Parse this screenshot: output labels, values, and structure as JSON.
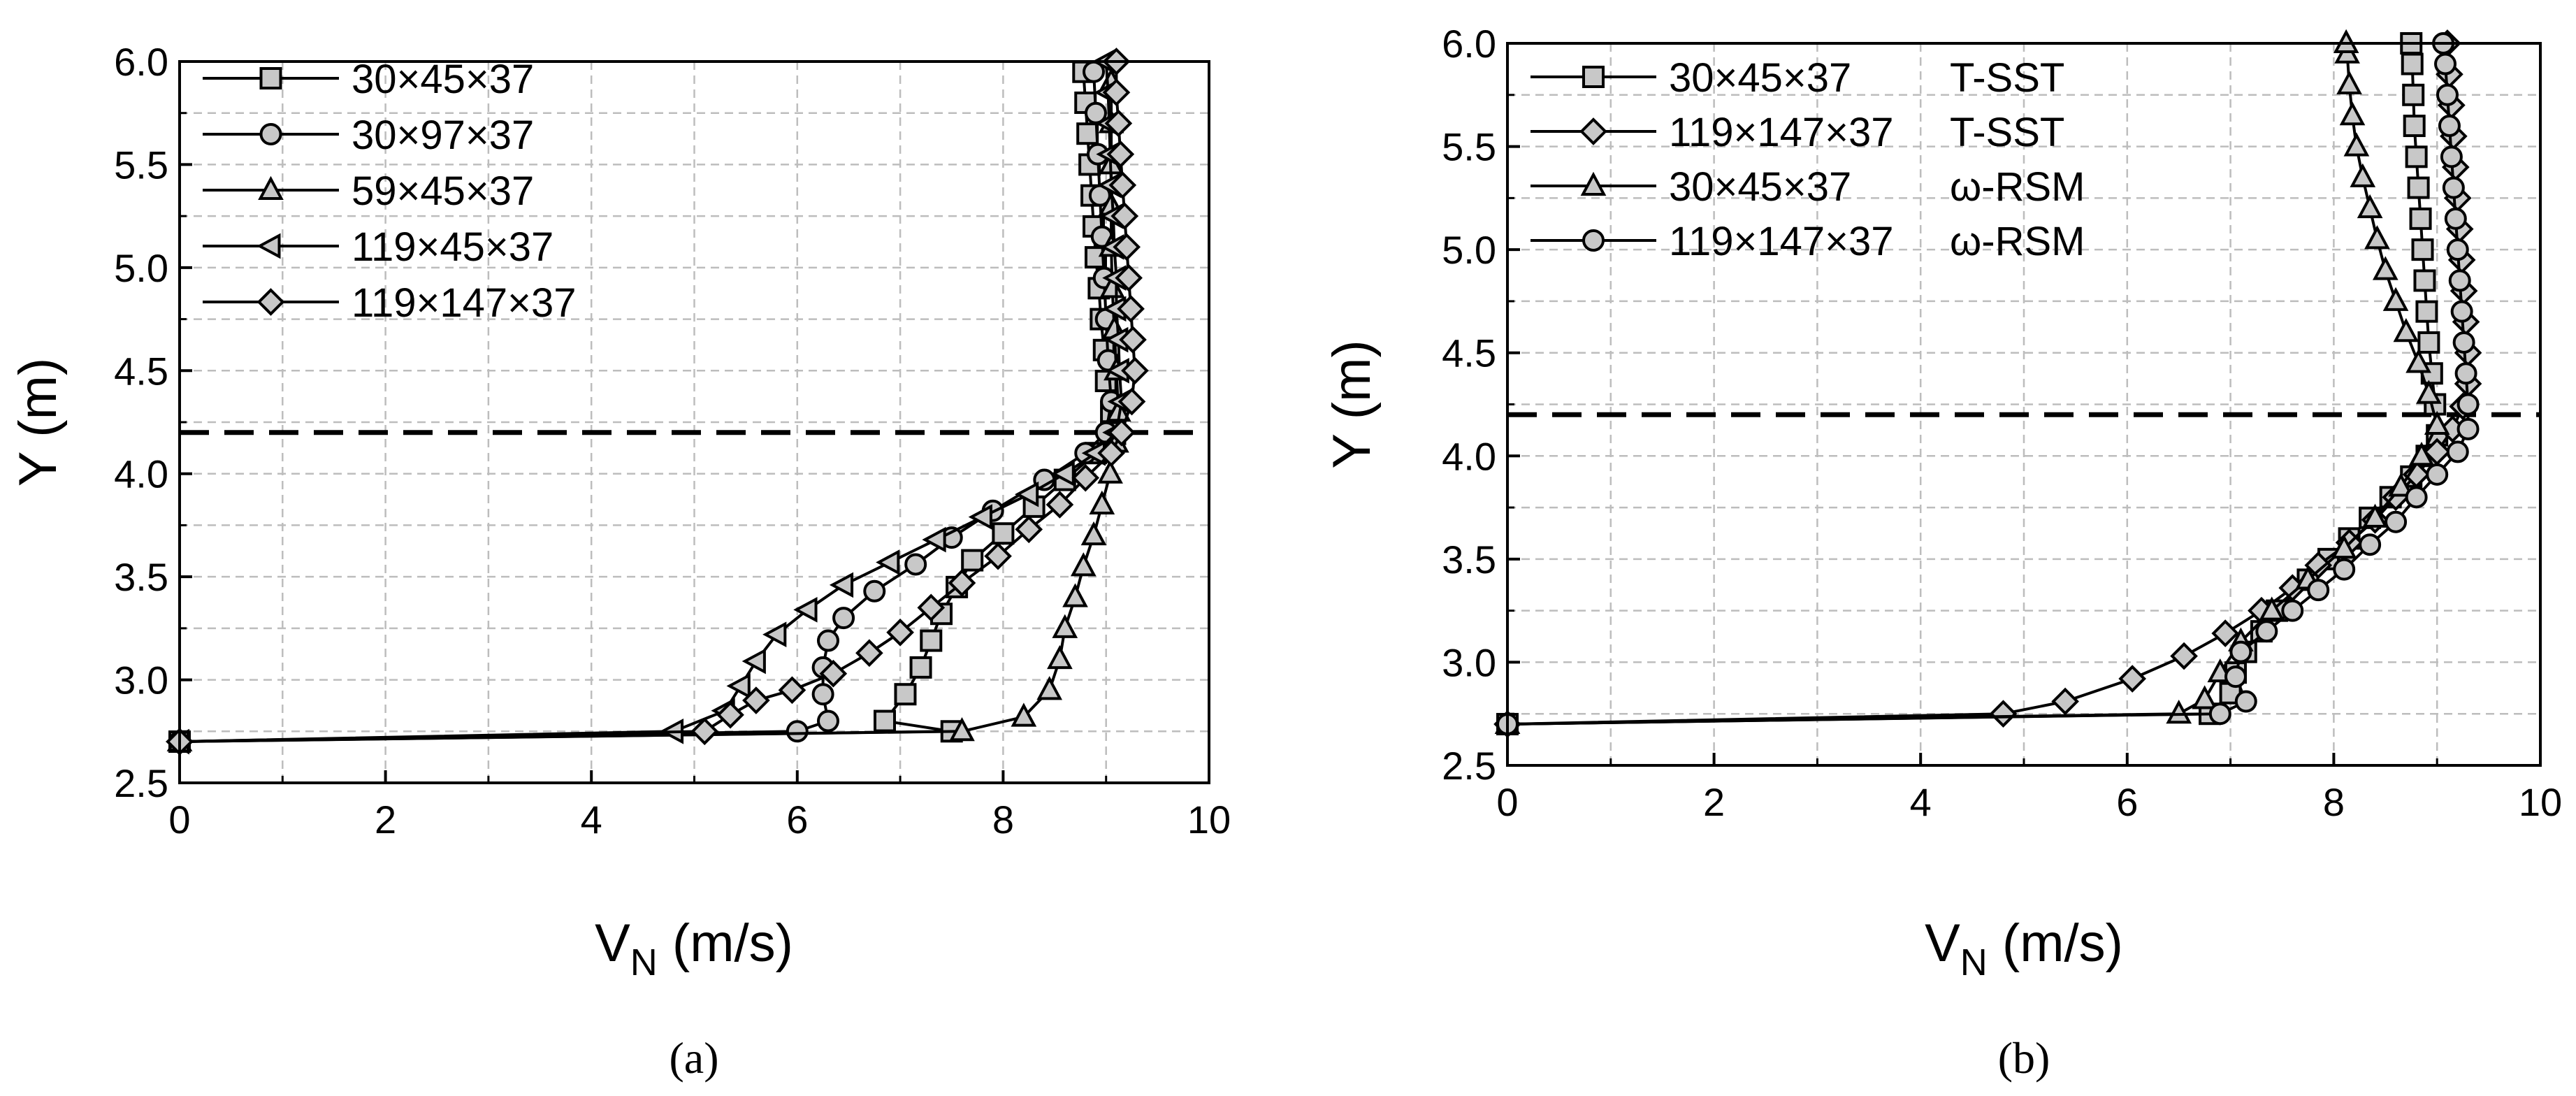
{
  "chart_data": [
    {
      "type": "line",
      "panel_label": "(a)",
      "xlabel_main": "V",
      "xlabel_sub": "N",
      "xlabel_rest": " (m/s)",
      "ylabel": "Y (m)",
      "xlim": [
        0,
        10
      ],
      "ylim": [
        2.5,
        6.0
      ],
      "xticks": [
        "0",
        "2",
        "4",
        "6",
        "8",
        "10"
      ],
      "yticks": [
        "2.5",
        "3.0",
        "3.5",
        "4.0",
        "4.5",
        "5.0",
        "5.5",
        "6.0"
      ],
      "grid": true,
      "legend_position": "top-left",
      "reference_line_y": 4.2,
      "series": [
        {
          "name": "30×45×37",
          "marker": "square",
          "points": [
            [
              0,
              2.7
            ],
            [
              7.5,
              2.75
            ],
            [
              6.85,
              2.8
            ],
            [
              7.05,
              2.93
            ],
            [
              7.2,
              3.06
            ],
            [
              7.3,
              3.19
            ],
            [
              7.4,
              3.32
            ],
            [
              7.55,
              3.45
            ],
            [
              7.7,
              3.58
            ],
            [
              8.0,
              3.71
            ],
            [
              8.3,
              3.84
            ],
            [
              8.6,
              3.97
            ],
            [
              8.9,
              4.1
            ],
            [
              9.05,
              4.2
            ],
            [
              9.05,
              4.3
            ],
            [
              9.0,
              4.45
            ],
            [
              8.98,
              4.6
            ],
            [
              8.95,
              4.75
            ],
            [
              8.93,
              4.9
            ],
            [
              8.9,
              5.05
            ],
            [
              8.88,
              5.2
            ],
            [
              8.86,
              5.35
            ],
            [
              8.84,
              5.5
            ],
            [
              8.82,
              5.65
            ],
            [
              8.8,
              5.8
            ],
            [
              8.78,
              5.95
            ]
          ]
        },
        {
          "name": "30×97×37",
          "marker": "circle",
          "points": [
            [
              0,
              2.7
            ],
            [
              6.0,
              2.75
            ],
            [
              6.3,
              2.8
            ],
            [
              6.25,
              2.93
            ],
            [
              6.25,
              3.06
            ],
            [
              6.3,
              3.19
            ],
            [
              6.45,
              3.3
            ],
            [
              6.75,
              3.43
            ],
            [
              7.15,
              3.56
            ],
            [
              7.5,
              3.69
            ],
            [
              7.9,
              3.82
            ],
            [
              8.4,
              3.97
            ],
            [
              8.8,
              4.1
            ],
            [
              9.0,
              4.2
            ],
            [
              9.05,
              4.35
            ],
            [
              9.02,
              4.55
            ],
            [
              9.0,
              4.75
            ],
            [
              8.98,
              4.95
            ],
            [
              8.96,
              5.15
            ],
            [
              8.94,
              5.35
            ],
            [
              8.92,
              5.55
            ],
            [
              8.9,
              5.75
            ],
            [
              8.88,
              5.95
            ]
          ]
        },
        {
          "name": "59×45×37",
          "marker": "triangle-up",
          "points": [
            [
              0,
              2.7
            ],
            [
              7.6,
              2.75
            ],
            [
              8.2,
              2.82
            ],
            [
              8.45,
              2.95
            ],
            [
              8.55,
              3.1
            ],
            [
              8.6,
              3.25
            ],
            [
              8.7,
              3.4
            ],
            [
              8.78,
              3.55
            ],
            [
              8.88,
              3.7
            ],
            [
              8.96,
              3.85
            ],
            [
              9.04,
              4.0
            ],
            [
              9.1,
              4.15
            ],
            [
              9.12,
              4.3
            ],
            [
              9.1,
              4.5
            ],
            [
              9.08,
              4.7
            ],
            [
              9.06,
              4.9
            ],
            [
              9.05,
              5.1
            ],
            [
              9.05,
              5.3
            ],
            [
              9.05,
              5.5
            ],
            [
              9.05,
              5.7
            ],
            [
              9.05,
              5.9
            ]
          ]
        },
        {
          "name": "119×45×37",
          "marker": "triangle-left",
          "points": [
            [
              0,
              2.7
            ],
            [
              4.8,
              2.75
            ],
            [
              5.3,
              2.85
            ],
            [
              5.45,
              2.97
            ],
            [
              5.6,
              3.09
            ],
            [
              5.8,
              3.22
            ],
            [
              6.1,
              3.34
            ],
            [
              6.45,
              3.46
            ],
            [
              6.9,
              3.57
            ],
            [
              7.35,
              3.68
            ],
            [
              7.8,
              3.79
            ],
            [
              8.25,
              3.9
            ],
            [
              8.6,
              4.0
            ],
            [
              8.9,
              4.1
            ],
            [
              9.1,
              4.2
            ],
            [
              9.15,
              4.35
            ],
            [
              9.13,
              4.5
            ],
            [
              9.12,
              4.65
            ],
            [
              9.1,
              4.8
            ],
            [
              9.1,
              4.95
            ],
            [
              9.08,
              5.1
            ],
            [
              9.07,
              5.25
            ],
            [
              9.05,
              5.4
            ],
            [
              9.04,
              5.55
            ],
            [
              9.03,
              5.7
            ],
            [
              9.02,
              5.85
            ],
            [
              9.0,
              6.0
            ]
          ]
        },
        {
          "name": "119×147×37",
          "marker": "diamond",
          "points": [
            [
              0,
              2.7
            ],
            [
              5.1,
              2.75
            ],
            [
              5.35,
              2.83
            ],
            [
              5.6,
              2.9
            ],
            [
              5.95,
              2.95
            ],
            [
              6.35,
              3.03
            ],
            [
              6.7,
              3.13
            ],
            [
              7.0,
              3.23
            ],
            [
              7.3,
              3.35
            ],
            [
              7.6,
              3.47
            ],
            [
              7.95,
              3.6
            ],
            [
              8.25,
              3.73
            ],
            [
              8.55,
              3.85
            ],
            [
              8.8,
              3.98
            ],
            [
              9.05,
              4.1
            ],
            [
              9.15,
              4.2
            ],
            [
              9.25,
              4.35
            ],
            [
              9.28,
              4.5
            ],
            [
              9.26,
              4.65
            ],
            [
              9.24,
              4.8
            ],
            [
              9.22,
              4.95
            ],
            [
              9.2,
              5.1
            ],
            [
              9.18,
              5.25
            ],
            [
              9.16,
              5.4
            ],
            [
              9.14,
              5.55
            ],
            [
              9.12,
              5.7
            ],
            [
              9.1,
              5.85
            ],
            [
              9.1,
              6.0
            ]
          ]
        }
      ]
    },
    {
      "type": "line",
      "panel_label": "(b)",
      "xlabel_main": "V",
      "xlabel_sub": "N",
      "xlabel_rest": " (m/s)",
      "ylabel": "Y (m)",
      "xlim": [
        0,
        10
      ],
      "ylim": [
        2.5,
        6.0
      ],
      "xticks": [
        "0",
        "2",
        "4",
        "6",
        "8",
        "10"
      ],
      "yticks": [
        "2.5",
        "3.0",
        "3.5",
        "4.0",
        "4.5",
        "5.0",
        "5.5",
        "6.0"
      ],
      "grid": true,
      "legend_position": "top-left",
      "reference_line_y": 4.2,
      "series": [
        {
          "name": "30×45×37",
          "model": "T-SST",
          "marker": "square",
          "points": [
            [
              0,
              2.7
            ],
            [
              6.8,
              2.75
            ],
            [
              7.0,
              2.85
            ],
            [
              7.05,
              2.95
            ],
            [
              7.15,
              3.05
            ],
            [
              7.3,
              3.15
            ],
            [
              7.45,
              3.25
            ],
            [
              7.75,
              3.4
            ],
            [
              7.95,
              3.5
            ],
            [
              8.15,
              3.6
            ],
            [
              8.35,
              3.7
            ],
            [
              8.55,
              3.8
            ],
            [
              8.75,
              3.9
            ],
            [
              8.9,
              4.0
            ],
            [
              9.0,
              4.1
            ],
            [
              8.98,
              4.25
            ],
            [
              8.95,
              4.4
            ],
            [
              8.92,
              4.55
            ],
            [
              8.9,
              4.7
            ],
            [
              8.88,
              4.85
            ],
            [
              8.86,
              5.0
            ],
            [
              8.84,
              5.15
            ],
            [
              8.82,
              5.3
            ],
            [
              8.8,
              5.45
            ],
            [
              8.78,
              5.6
            ],
            [
              8.77,
              5.75
            ],
            [
              8.76,
              5.9
            ],
            [
              8.75,
              6.0
            ]
          ]
        },
        {
          "name": "119×147×37",
          "model": "T-SST",
          "marker": "diamond",
          "points": [
            [
              0,
              2.7
            ],
            [
              4.8,
              2.75
            ],
            [
              5.4,
              2.81
            ],
            [
              6.05,
              2.92
            ],
            [
              6.55,
              3.03
            ],
            [
              6.95,
              3.14
            ],
            [
              7.3,
              3.25
            ],
            [
              7.6,
              3.36
            ],
            [
              7.85,
              3.47
            ],
            [
              8.15,
              3.58
            ],
            [
              8.4,
              3.69
            ],
            [
              8.6,
              3.8
            ],
            [
              8.8,
              3.91
            ],
            [
              9.0,
              4.02
            ],
            [
              9.15,
              4.13
            ],
            [
              9.25,
              4.24
            ],
            [
              9.3,
              4.35
            ],
            [
              9.3,
              4.5
            ],
            [
              9.28,
              4.65
            ],
            [
              9.26,
              4.8
            ],
            [
              9.24,
              4.95
            ],
            [
              9.22,
              5.1
            ],
            [
              9.2,
              5.25
            ],
            [
              9.18,
              5.4
            ],
            [
              9.16,
              5.55
            ],
            [
              9.14,
              5.7
            ],
            [
              9.12,
              5.85
            ],
            [
              9.1,
              6.0
            ]
          ]
        },
        {
          "name": "30×45×37",
          "model": "ω-RSM",
          "marker": "triangle-up",
          "points": [
            [
              0,
              2.7
            ],
            [
              6.5,
              2.75
            ],
            [
              6.75,
              2.82
            ],
            [
              6.9,
              2.95
            ],
            [
              7.1,
              3.1
            ],
            [
              7.4,
              3.25
            ],
            [
              7.75,
              3.4
            ],
            [
              8.1,
              3.55
            ],
            [
              8.4,
              3.7
            ],
            [
              8.65,
              3.85
            ],
            [
              8.85,
              4.0
            ],
            [
              9.0,
              4.15
            ],
            [
              8.92,
              4.3
            ],
            [
              8.82,
              4.45
            ],
            [
              8.7,
              4.6
            ],
            [
              8.6,
              4.75
            ],
            [
              8.5,
              4.9
            ],
            [
              8.42,
              5.05
            ],
            [
              8.35,
              5.2
            ],
            [
              8.28,
              5.35
            ],
            [
              8.22,
              5.5
            ],
            [
              8.18,
              5.65
            ],
            [
              8.15,
              5.8
            ],
            [
              8.13,
              5.95
            ],
            [
              8.12,
              6.0
            ]
          ]
        },
        {
          "name": "119×147×37",
          "model": "ω-RSM",
          "marker": "circle",
          "points": [
            [
              0,
              2.7
            ],
            [
              6.9,
              2.75
            ],
            [
              7.15,
              2.81
            ],
            [
              7.05,
              2.93
            ],
            [
              7.1,
              3.05
            ],
            [
              7.35,
              3.15
            ],
            [
              7.6,
              3.25
            ],
            [
              7.85,
              3.35
            ],
            [
              8.1,
              3.45
            ],
            [
              8.35,
              3.57
            ],
            [
              8.6,
              3.68
            ],
            [
              8.8,
              3.8
            ],
            [
              9.0,
              3.91
            ],
            [
              9.2,
              4.02
            ],
            [
              9.3,
              4.13
            ],
            [
              9.3,
              4.25
            ],
            [
              9.28,
              4.4
            ],
            [
              9.26,
              4.55
            ],
            [
              9.24,
              4.7
            ],
            [
              9.22,
              4.85
            ],
            [
              9.2,
              5.0
            ],
            [
              9.18,
              5.15
            ],
            [
              9.16,
              5.3
            ],
            [
              9.14,
              5.45
            ],
            [
              9.12,
              5.6
            ],
            [
              9.1,
              5.75
            ],
            [
              9.08,
              5.9
            ],
            [
              9.06,
              6.0
            ]
          ]
        }
      ]
    }
  ]
}
